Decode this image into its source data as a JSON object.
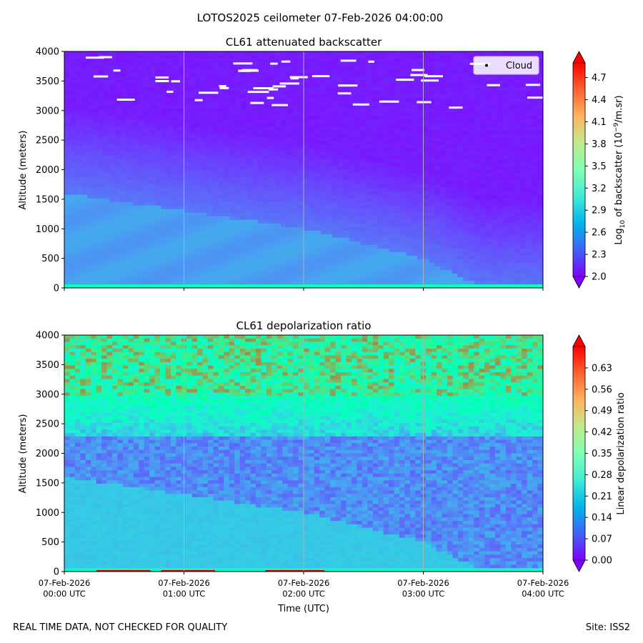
{
  "figure": {
    "suptitle": "LOTOS2025 ceilometer 07-Feb-2026 04:00:00",
    "footer_left": "REAL TIME DATA, NOT CHECKED FOR QUALITY",
    "footer_right": "Site: ISS2"
  },
  "chart_data": [
    {
      "type": "heatmap",
      "title": "CL61 attenuated backscatter",
      "xlabel": "",
      "ylabel": "Altitude (meters)",
      "ylim": [
        0,
        4000
      ],
      "yticks": [
        "0",
        "500",
        "1000",
        "1500",
        "2000",
        "2500",
        "3000",
        "3500",
        "4000"
      ],
      "xlim": [
        "07-Feb-2026 00:00 UTC",
        "07-Feb-2026 04:00 UTC"
      ],
      "xtick_labels": [],
      "grid": "vertical lines at each hour",
      "legend": {
        "position": "top-right",
        "entries": [
          "Cloud"
        ]
      },
      "colorbar": {
        "label_prefix": "Log",
        "label_sub": "10",
        "label_mid": " of backscatter (10",
        "label_sup": "−9",
        "label_suffix": "/m.sr)",
        "range": [
          2.0,
          4.9
        ],
        "ticks": [
          "2.0",
          "2.3",
          "2.6",
          "2.9",
          "3.2",
          "3.5",
          "3.8",
          "4.1",
          "4.4",
          "4.7"
        ],
        "colormap": "rainbow",
        "extend": "both"
      },
      "field": {
        "description_values": "log10 backscatter ~2.7 near surface decreasing to ~2.1 above 3000 m; boundary layer top ~1600 m at 00:00 declining to surface by ~03:30",
        "surface_value": 2.65,
        "upper_value": 2.05,
        "boundary_layer_top_m": [
          [
            0,
            1600
          ],
          [
            1,
            1300
          ],
          [
            2,
            1000
          ],
          [
            3,
            500
          ],
          [
            3.5,
            0
          ],
          [
            4,
            0
          ]
        ]
      },
      "cloud_altitude_range_m": [
        3000,
        4000
      ]
    },
    {
      "type": "heatmap",
      "title": "CL61 depolarization ratio",
      "xlabel": "Time (UTC)",
      "ylabel": "Altitude (meters)",
      "ylim": [
        0,
        4000
      ],
      "yticks": [
        "0",
        "500",
        "1000",
        "1500",
        "2000",
        "2500",
        "3000",
        "3500",
        "4000"
      ],
      "xlim": [
        "07-Feb-2026 00:00 UTC",
        "07-Feb-2026 04:00 UTC"
      ],
      "xtick_labels": [
        [
          "07-Feb-2026",
          "00:00 UTC"
        ],
        [
          "07-Feb-2026",
          "01:00 UTC"
        ],
        [
          "07-Feb-2026",
          "02:00 UTC"
        ],
        [
          "07-Feb-2026",
          "03:00 UTC"
        ],
        [
          "07-Feb-2026",
          "04:00 UTC"
        ]
      ],
      "grid": "vertical lines at each hour",
      "colorbar": {
        "label": "Linear depolarization ratio",
        "range": [
          0.0,
          0.7
        ],
        "ticks": [
          "0.00",
          "0.07",
          "0.14",
          "0.21",
          "0.28",
          "0.35",
          "0.42",
          "0.49",
          "0.56",
          "0.63"
        ],
        "colormap": "rainbow",
        "extend": "both"
      },
      "field": {
        "description_values": "~0.20 near surface, ~0.12 mid layer 1500-2200 m, rising to ~0.45-0.6 above 3000 m",
        "surface_value": 0.2,
        "upper_value": 0.5
      }
    }
  ],
  "colors": {
    "rainbow_low": "#8000ff",
    "rainbow_high": "#ff0000",
    "gridline": "#b0b0b0"
  }
}
